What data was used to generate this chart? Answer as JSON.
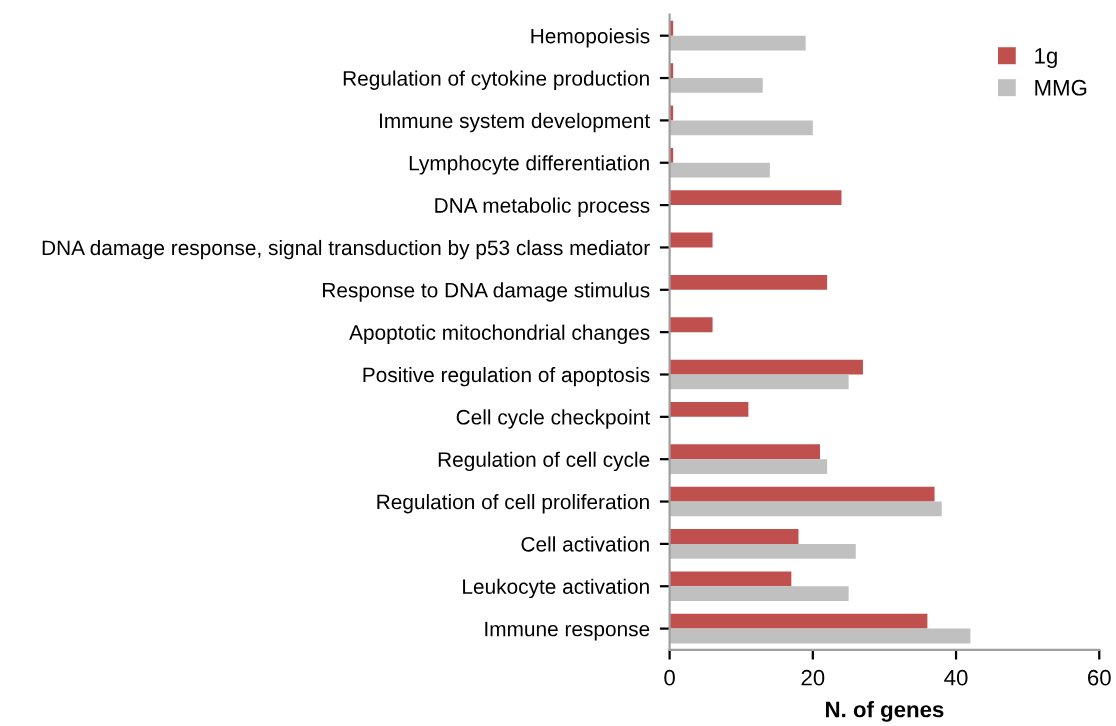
{
  "chart_data": {
    "type": "bar",
    "orientation": "horizontal",
    "xlabel": "N. of genes",
    "categories": [
      "Hemopoiesis",
      "Regulation of cytokine production",
      "Immune system development",
      "Lymphocyte differentiation",
      "DNA metabolic process",
      "DNA damage response, signal transduction by p53 class mediator",
      "Response to DNA damage stimulus",
      "Apoptotic mitochondrial changes",
      "Positive regulation of apoptosis",
      "Cell cycle checkpoint",
      "Regulation of cell cycle",
      "Regulation of cell proliferation",
      "Cell activation",
      "Leukocyte activation",
      "Immune response"
    ],
    "series": [
      {
        "name": "1g",
        "color": "#c0504d",
        "values": [
          0.5,
          0.5,
          0.5,
          0.5,
          24,
          6,
          22,
          6,
          27,
          11,
          21,
          37,
          18,
          17,
          36
        ]
      },
      {
        "name": "MMG",
        "color": "#c0c0c0",
        "values": [
          19,
          13,
          20,
          14,
          0,
          0,
          0,
          0,
          25,
          0,
          22,
          38,
          26,
          25,
          42
        ]
      }
    ],
    "xlim": [
      0,
      60
    ],
    "xticks": [
      0,
      20,
      40,
      60
    ],
    "grid": false,
    "legend": "top right"
  }
}
